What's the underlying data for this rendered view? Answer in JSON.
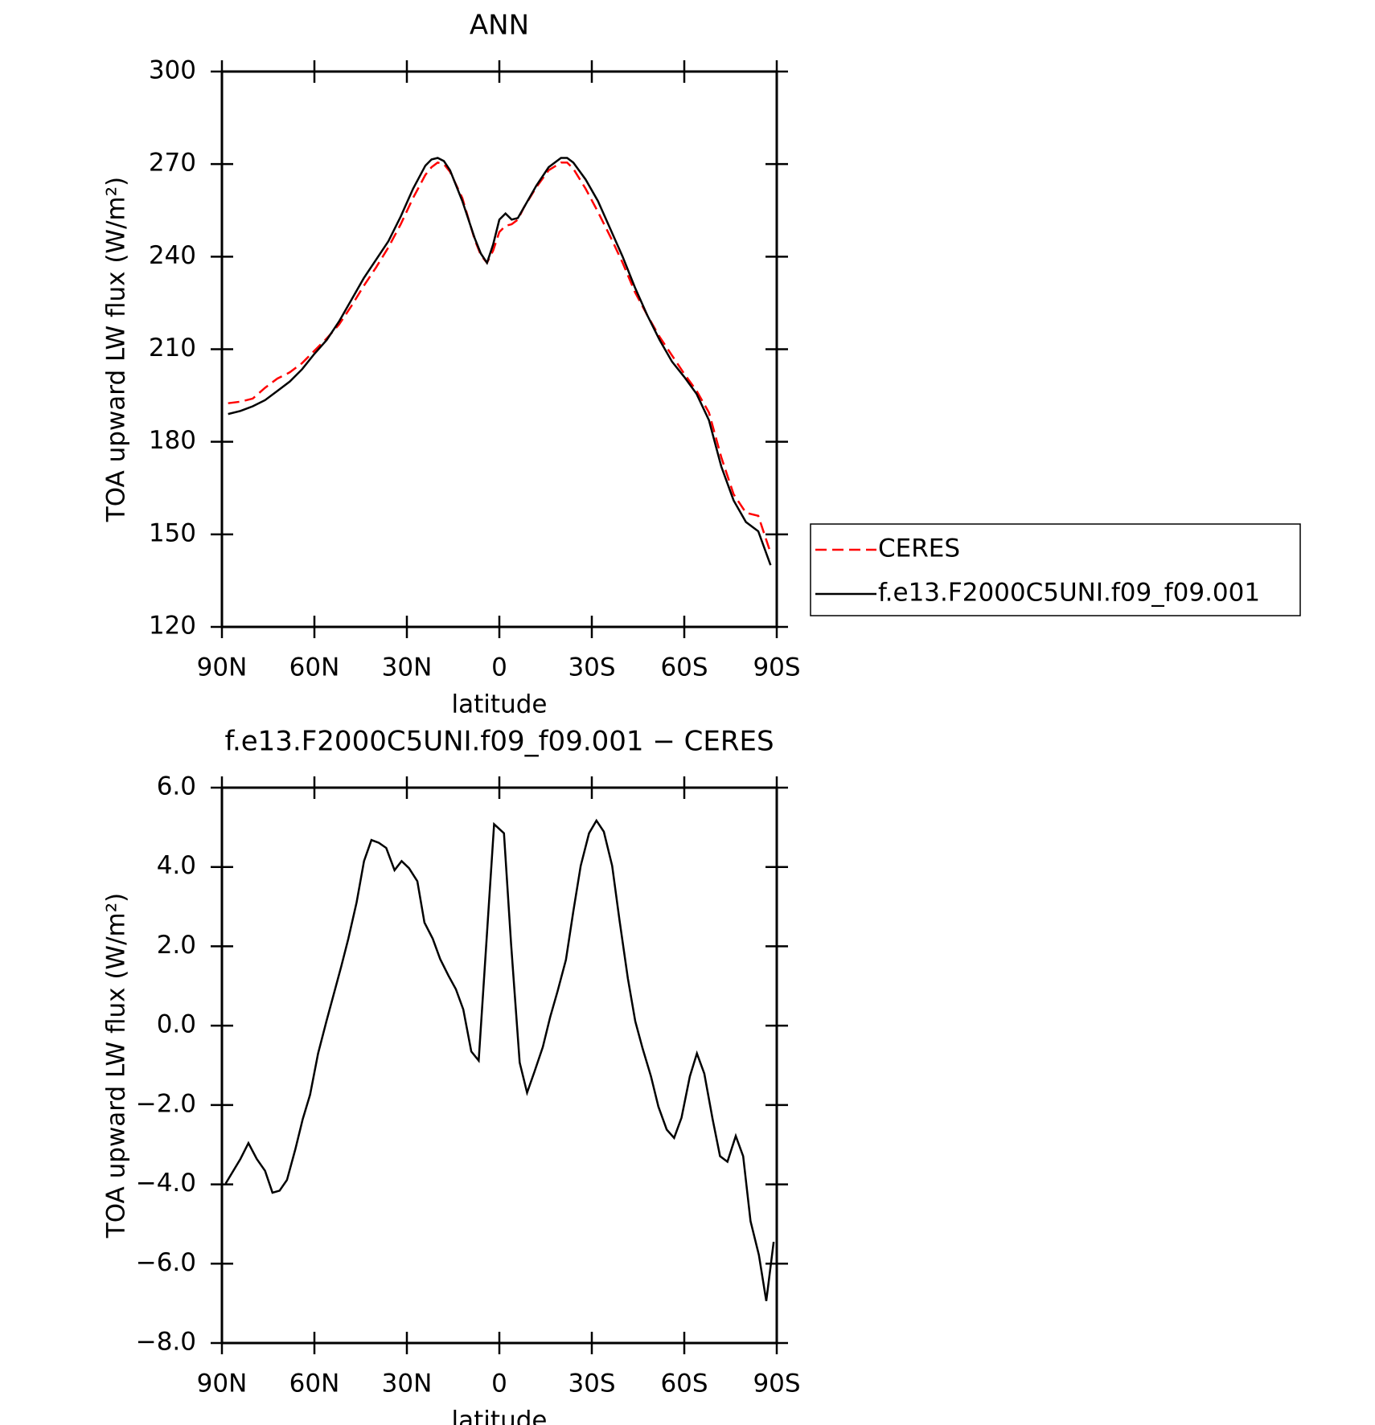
{
  "chart_data": [
    {
      "type": "line",
      "title": "ANN",
      "x_label": "latitude",
      "y_label": "TOA upward LW flux (W/m²)",
      "x": [
        88,
        84,
        80,
        76,
        72,
        68,
        64,
        60,
        56,
        52,
        48,
        44,
        40,
        36,
        32,
        28,
        24,
        22,
        20,
        18,
        16,
        12,
        8,
        6,
        4,
        2,
        0,
        -2,
        -4,
        -6,
        -8,
        -12,
        -16,
        -20,
        -22,
        -24,
        -28,
        -32,
        -36,
        -40,
        -44,
        -48,
        -52,
        -56,
        -60,
        -64,
        -68,
        -72,
        -76,
        -80,
        -84,
        -88
      ],
      "series": [
        {
          "name": "CERES",
          "color": "#ff0000",
          "dashed": true,
          "values": [
            192.5,
            193,
            194,
            197.5,
            200.5,
            202.5,
            205.5,
            209.5,
            213.5,
            218,
            224,
            230.5,
            236.5,
            243,
            250.5,
            259,
            266.5,
            269,
            270.5,
            270,
            267.5,
            259,
            245.5,
            240.5,
            238,
            242,
            248,
            250,
            250.5,
            252,
            256,
            262.5,
            268,
            270.5,
            270.5,
            268.5,
            262,
            254.5,
            246.5,
            238,
            228.5,
            221,
            214,
            208,
            202,
            196.5,
            189.5,
            175,
            163,
            157,
            156,
            144
          ]
        },
        {
          "name": "f.e13.F2000C5UNI.f09_f09.001",
          "color": "#000000",
          "dashed": false,
          "values": [
            189,
            190,
            191.5,
            193.5,
            196.5,
            199.5,
            203.5,
            208.5,
            213,
            219,
            226,
            233,
            239,
            245,
            253,
            262,
            269.5,
            271.5,
            272,
            271,
            268,
            258,
            246,
            241,
            238,
            244,
            252,
            254,
            252,
            252.5,
            256,
            263,
            269,
            272,
            272,
            270.5,
            265,
            258,
            249,
            240,
            230,
            221,
            213,
            206,
            201,
            195.5,
            187,
            172,
            161,
            154,
            151,
            140
          ]
        }
      ],
      "xlim": [
        90,
        -90
      ],
      "xticks": [
        {
          "value": 90,
          "label": "90N"
        },
        {
          "value": 60,
          "label": "60N"
        },
        {
          "value": 30,
          "label": "30N"
        },
        0,
        {
          "value": -30,
          "label": "30S"
        },
        {
          "value": -60,
          "label": "60S"
        },
        {
          "value": -90,
          "label": "90S"
        }
      ],
      "ylim": [
        120,
        300
      ],
      "yticks": [
        120,
        150,
        180,
        210,
        240,
        270,
        300
      ],
      "legend": "outside-right"
    },
    {
      "type": "line",
      "title": "f.e13.F2000C5UNI.f09_f09.001 − CERES",
      "x_label": "latitude",
      "y_label": "TOA upward LW flux (W/m²)",
      "x": [
        88.8,
        84,
        81.4,
        78.7,
        76,
        73.6,
        71.3,
        68.9,
        66.2,
        63.8,
        61.4,
        58.8,
        56.1,
        51.3,
        49,
        46.3,
        43.9,
        41.5,
        39.1,
        36.7,
        34,
        31.7,
        29.3,
        26.6,
        24.3,
        21.6,
        19.2,
        16.5,
        14.1,
        11.7,
        9.1,
        6.7,
        1.7,
        -1.5,
        -3.8,
        -6.6,
        -9,
        -11.4,
        -14.1,
        -16.5,
        -18.9,
        -21.6,
        -24,
        -26.4,
        -29.1,
        -31.5,
        -33.9,
        -36.6,
        -39,
        -41.7,
        -44.1,
        -46.5,
        -49.2,
        -51.6,
        -54.3,
        -56.7,
        -59.1,
        -61.8,
        -64.1,
        -66.5,
        -69.2,
        -71.6,
        -74,
        -76.7,
        -79.1,
        -81.5,
        -84.2,
        -86.6,
        -89
      ],
      "series": [
        {
          "name": "f.e13.F2000C5UNI.f09_f09.001 − CERES",
          "color": "#000000",
          "dashed": false,
          "values": [
            -3.98,
            -3.36,
            -2.96,
            -3.36,
            -3.66,
            -4.21,
            -4.16,
            -3.89,
            -3.12,
            -2.36,
            -1.74,
            -0.7,
            0.11,
            1.49,
            2.19,
            3.11,
            4.15,
            4.68,
            4.61,
            4.48,
            3.92,
            4.15,
            3.97,
            3.64,
            2.6,
            2.19,
            1.68,
            1.26,
            0.92,
            0.41,
            -0.65,
            -0.88,
            5.08,
            4.85,
            2.07,
            -0.93,
            -1.69,
            -1.16,
            -0.54,
            0.22,
            0.87,
            1.66,
            2.88,
            4.03,
            4.85,
            5.17,
            4.89,
            4.03,
            2.65,
            1.19,
            0.11,
            -0.58,
            -1.28,
            -2.04,
            -2.62,
            -2.83,
            -2.32,
            -1.28,
            -0.7,
            -1.21,
            -2.36,
            -3.29,
            -3.43,
            -2.78,
            -3.29,
            -4.93,
            -5.78,
            -6.94,
            -5.45
          ]
        }
      ],
      "xlim": [
        90,
        -90
      ],
      "xticks": [
        {
          "value": 90,
          "label": "90N"
        },
        {
          "value": 60,
          "label": "60N"
        },
        {
          "value": 30,
          "label": "30N"
        },
        0,
        {
          "value": -30,
          "label": "30S"
        },
        {
          "value": -60,
          "label": "60S"
        },
        {
          "value": -90,
          "label": "90S"
        }
      ],
      "ylim": [
        -8,
        6
      ],
      "yticks": [
        {
          "value": -8,
          "label": "−8.0"
        },
        {
          "value": -6,
          "label": "−6.0"
        },
        {
          "value": -4,
          "label": "−4.0"
        },
        {
          "value": -2,
          "label": "−2.0"
        },
        {
          "value": 0,
          "label": "0.0"
        },
        {
          "value": 2,
          "label": "2.0"
        },
        {
          "value": 4,
          "label": "4.0"
        },
        {
          "value": 6,
          "label": "6.0"
        }
      ]
    }
  ]
}
